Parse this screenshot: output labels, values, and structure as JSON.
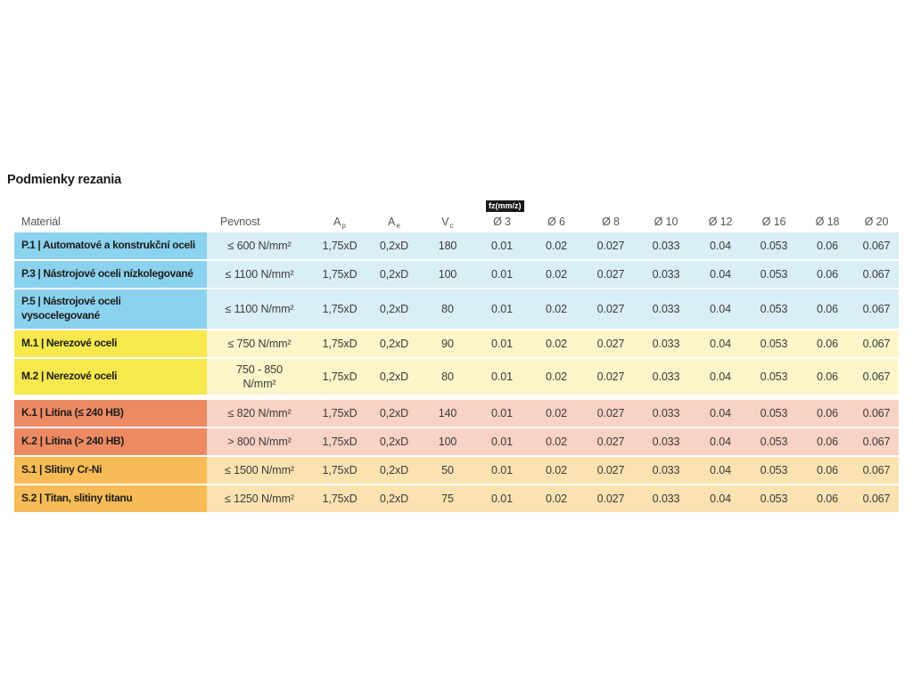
{
  "page": {
    "title": "Podmienky rezania",
    "background_color": "#ffffff"
  },
  "table": {
    "fz_badge": "fz(mm/z)",
    "columns": [
      {
        "key": "material",
        "label": "Materiál"
      },
      {
        "key": "pevnost",
        "label": "Pevnost"
      },
      {
        "key": "ap",
        "label": "A",
        "sub": "p"
      },
      {
        "key": "ae",
        "label": "A",
        "sub": "e"
      },
      {
        "key": "vc",
        "label": "V",
        "sub": "c"
      },
      {
        "key": "d3",
        "label": "Ø 3"
      },
      {
        "key": "d6",
        "label": "Ø 6"
      },
      {
        "key": "d8",
        "label": "Ø 8"
      },
      {
        "key": "d10",
        "label": "Ø 10"
      },
      {
        "key": "d12",
        "label": "Ø 12"
      },
      {
        "key": "d16",
        "label": "Ø 16"
      },
      {
        "key": "d18",
        "label": "Ø 18"
      },
      {
        "key": "d20",
        "label": "Ø 20"
      }
    ],
    "group_colors": {
      "P": {
        "strong": "#8bd2ee",
        "soft": "#daeef7"
      },
      "M": {
        "strong": "#f6e84d",
        "soft": "#fbf5c9"
      },
      "K": {
        "strong": "#ee8a63",
        "soft": "#f8d2c4"
      },
      "S": {
        "strong": "#f7bc57",
        "soft": "#fbe2b1"
      }
    },
    "rows": [
      {
        "group": "P",
        "material_lines": [
          "P.1 | Automatové a konstrukční oceli"
        ],
        "pevnost_lines": [
          "≤ 600 N/mm²"
        ],
        "ap": "1,75xD",
        "ae": "0,2xD",
        "vc": "180",
        "fz": [
          "0.01",
          "0.02",
          "0.027",
          "0.033",
          "0.04",
          "0.053",
          "0.06",
          "0.067"
        ]
      },
      {
        "group": "P",
        "material_lines": [
          "P.3 | Nástrojové oceli nízkolegované"
        ],
        "pevnost_lines": [
          "≤ 1100 N/mm²"
        ],
        "ap": "1,75xD",
        "ae": "0,2xD",
        "vc": "100",
        "fz": [
          "0.01",
          "0.02",
          "0.027",
          "0.033",
          "0.04",
          "0.053",
          "0.06",
          "0.067"
        ]
      },
      {
        "group": "P",
        "material_lines": [
          "P.5 | Nástrojové oceli",
          "vysocelegované"
        ],
        "pevnost_lines": [
          "≤ 1100 N/mm²"
        ],
        "ap": "1,75xD",
        "ae": "0,2xD",
        "vc": "80",
        "fz": [
          "0.01",
          "0.02",
          "0.027",
          "0.033",
          "0.04",
          "0.053",
          "0.06",
          "0.067"
        ]
      },
      {
        "group": "M",
        "material_lines": [
          "M.1 | Nerezové oceli"
        ],
        "pevnost_lines": [
          "≤ 750 N/mm²"
        ],
        "ap": "1,75xD",
        "ae": "0,2xD",
        "vc": "90",
        "fz": [
          "0.01",
          "0.02",
          "0.027",
          "0.033",
          "0.04",
          "0.053",
          "0.06",
          "0.067"
        ]
      },
      {
        "group": "M",
        "material_lines": [
          "M.2 | Nerezové oceli"
        ],
        "pevnost_lines": [
          "750 - 850",
          "N/mm²"
        ],
        "ap": "1,75xD",
        "ae": "0,2xD",
        "vc": "80",
        "fz": [
          "0.01",
          "0.02",
          "0.027",
          "0.033",
          "0.04",
          "0.053",
          "0.06",
          "0.067"
        ]
      },
      {
        "group": "K",
        "extra_gap": true,
        "material_lines": [
          "K.1 | Litina (≤ 240 HB)"
        ],
        "pevnost_lines": [
          "≤ 820 N/mm²"
        ],
        "ap": "1,75xD",
        "ae": "0,2xD",
        "vc": "140",
        "fz": [
          "0.01",
          "0.02",
          "0.027",
          "0.033",
          "0.04",
          "0.053",
          "0.06",
          "0.067"
        ]
      },
      {
        "group": "K",
        "material_lines": [
          "K.2 | Litina (> 240 HB)"
        ],
        "pevnost_lines": [
          "> 800 N/mm²"
        ],
        "ap": "1,75xD",
        "ae": "0,2xD",
        "vc": "100",
        "fz": [
          "0.01",
          "0.02",
          "0.027",
          "0.033",
          "0.04",
          "0.053",
          "0.06",
          "0.067"
        ]
      },
      {
        "group": "S",
        "material_lines": [
          "S.1 | Slitiny Cr-Ni"
        ],
        "pevnost_lines": [
          "≤ 1500 N/mm²"
        ],
        "ap": "1,75xD",
        "ae": "0,2xD",
        "vc": "50",
        "fz": [
          "0.01",
          "0.02",
          "0.027",
          "0.033",
          "0.04",
          "0.053",
          "0.06",
          "0.067"
        ]
      },
      {
        "group": "S",
        "material_lines": [
          "S.2 | Titan, slitiny titanu"
        ],
        "pevnost_lines": [
          "≤ 1250 N/mm²"
        ],
        "ap": "1,75xD",
        "ae": "0,2xD",
        "vc": "75",
        "fz": [
          "0.01",
          "0.02",
          "0.027",
          "0.033",
          "0.04",
          "0.053",
          "0.06",
          "0.067"
        ]
      }
    ]
  }
}
